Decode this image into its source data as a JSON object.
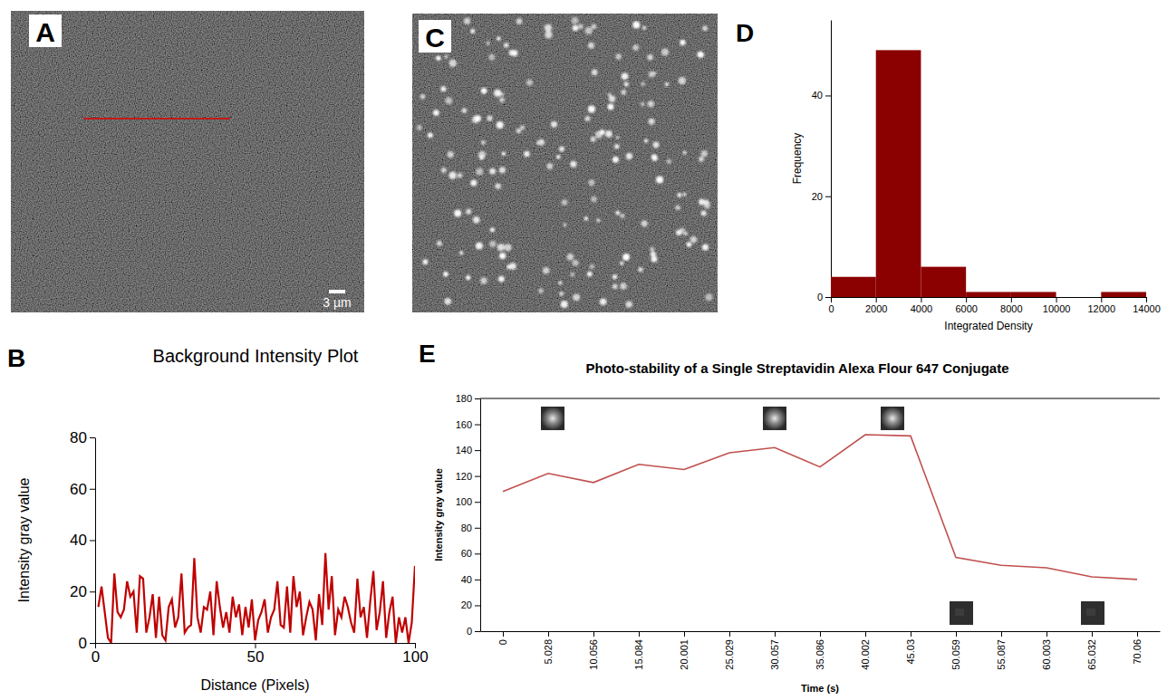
{
  "chart_data": [
    {
      "type": "image",
      "panel": "A",
      "scale_bar": "3 µm"
    },
    {
      "type": "line",
      "panel": "B",
      "title": "Background Intensity Plot",
      "x_label": "Distance (Pixels)",
      "y_label": "Intensity gray value",
      "x": [
        1,
        2,
        3,
        4,
        5,
        6,
        7,
        8,
        9,
        10,
        11,
        12,
        13,
        14,
        15,
        16,
        17,
        18,
        19,
        20,
        21,
        22,
        23,
        24,
        25,
        26,
        27,
        28,
        29,
        30,
        31,
        32,
        33,
        34,
        35,
        36,
        37,
        38,
        39,
        40,
        41,
        42,
        43,
        44,
        45,
        46,
        47,
        48,
        49,
        50,
        51,
        52,
        53,
        54,
        55,
        56,
        57,
        58,
        59,
        60,
        61,
        62,
        63,
        64,
        65,
        66,
        67,
        68,
        69,
        70,
        71,
        72,
        73,
        74,
        75,
        76,
        77,
        78,
        79,
        80,
        81,
        82,
        83,
        84,
        85,
        86,
        87,
        88,
        89,
        90,
        91,
        92,
        93,
        94,
        95,
        96,
        97,
        98,
        99,
        100
      ],
      "values": [
        14,
        22,
        12,
        2,
        0,
        27,
        12,
        10,
        13,
        24,
        18,
        20,
        4,
        26,
        25,
        4,
        10,
        19,
        2,
        18,
        3,
        1,
        14,
        17,
        6,
        10,
        27,
        4,
        6,
        7,
        33,
        10,
        4,
        14,
        13,
        20,
        3,
        24,
        14,
        6,
        12,
        4,
        18,
        10,
        15,
        3,
        14,
        6,
        17,
        1,
        9,
        12,
        17,
        4,
        10,
        13,
        24,
        7,
        6,
        22,
        4,
        26,
        14,
        20,
        3,
        10,
        16,
        13,
        1,
        19,
        7,
        35,
        13,
        26,
        3,
        13,
        10,
        18,
        14,
        8,
        4,
        25,
        10,
        14,
        2,
        16,
        28,
        5,
        12,
        24,
        2,
        12,
        18,
        0,
        10,
        4,
        10,
        0,
        8,
        30
      ],
      "color": "#c00000",
      "xlim": [
        0,
        100
      ],
      "xticks": [
        0,
        50,
        100
      ],
      "ylim": [
        0,
        80
      ],
      "yticks": [
        0,
        20,
        40,
        60,
        80
      ]
    },
    {
      "type": "image",
      "panel": "C"
    },
    {
      "type": "histogram",
      "panel": "D",
      "x_label": "Integrated Density",
      "y_label": "Frequency",
      "bins": [
        0,
        2000,
        4000,
        6000,
        8000,
        10000,
        12000,
        14000
      ],
      "counts": [
        4,
        49,
        6,
        1,
        1,
        0,
        1
      ],
      "color": "#8b0000",
      "xlim": [
        0,
        14000
      ],
      "xticks": [
        0,
        2000,
        4000,
        6000,
        8000,
        10000,
        12000,
        14000
      ],
      "ylim": [
        0,
        55
      ],
      "yticks": [
        0,
        20,
        40
      ]
    },
    {
      "type": "line",
      "panel": "E",
      "title": "Photo-stability of a Single Streptavidin Alexa Flour 647 Conjugate",
      "x_label": "Time (s)",
      "y_label": "Intensity gray value",
      "categories": [
        "0",
        "5.028",
        "10.056",
        "15.084",
        "20.001",
        "25.029",
        "30.057",
        "35.086",
        "40.002",
        "45.03",
        "50.059",
        "55.087",
        "60.003",
        "65.032",
        "70.06"
      ],
      "values": [
        108,
        122,
        115,
        129,
        125,
        138,
        142,
        127,
        152,
        151,
        57,
        51,
        49,
        42,
        40
      ],
      "color": "#c0504d",
      "ylim": [
        0,
        180
      ],
      "yticks": [
        0,
        20,
        40,
        60,
        80,
        100,
        120,
        140,
        160,
        180
      ]
    }
  ]
}
